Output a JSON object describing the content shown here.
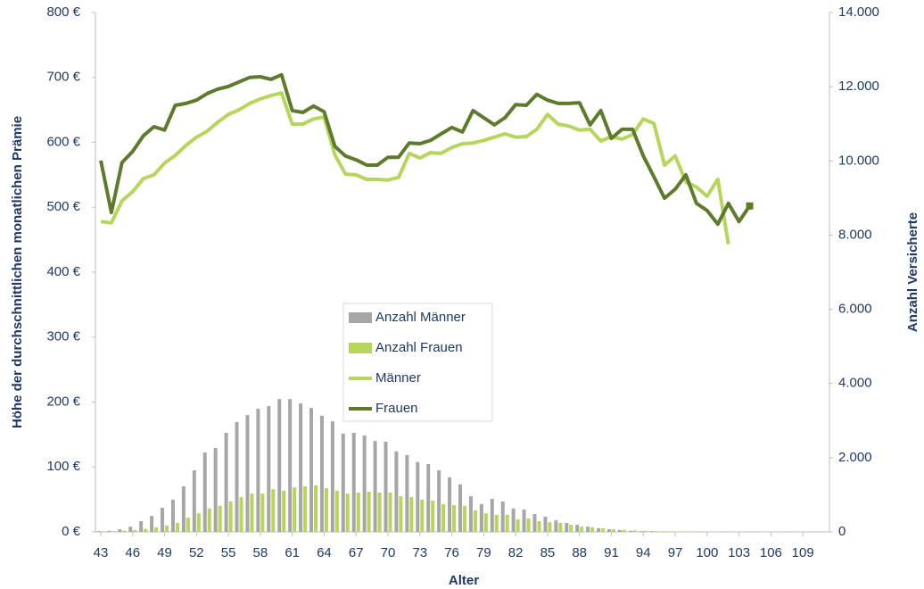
{
  "chart_data": {
    "type": "bar-line",
    "x_label": "Alter",
    "y_label": "Höhe der durchschnittlichen monatlichen Prämie",
    "y2_label": "Anzahl Versicherte",
    "x": [
      43,
      44,
      45,
      46,
      47,
      48,
      49,
      50,
      51,
      52,
      53,
      54,
      55,
      56,
      57,
      58,
      59,
      60,
      61,
      62,
      63,
      64,
      65,
      66,
      67,
      68,
      69,
      70,
      71,
      72,
      73,
      74,
      75,
      76,
      77,
      78,
      79,
      80,
      81,
      82,
      83,
      84,
      85,
      86,
      87,
      88,
      89,
      90,
      91,
      92,
      93,
      94,
      95,
      96,
      97,
      98,
      99,
      100,
      101,
      102,
      103,
      104,
      105,
      106,
      107,
      108,
      109,
      110,
      111
    ],
    "xlim": [
      42.5,
      111.5
    ],
    "xticks": [
      43,
      46,
      49,
      52,
      55,
      58,
      61,
      64,
      67,
      70,
      73,
      76,
      79,
      82,
      85,
      88,
      91,
      94,
      97,
      100,
      103,
      106,
      109
    ],
    "ylim": [
      0,
      800
    ],
    "yticks": [
      {
        "value": 0,
        "label": "0 €"
      },
      {
        "value": 100,
        "label": "100 €"
      },
      {
        "value": 200,
        "label": "200 €"
      },
      {
        "value": 300,
        "label": "300 €"
      },
      {
        "value": 400,
        "label": "400 €"
      },
      {
        "value": 500,
        "label": "500 €"
      },
      {
        "value": 600,
        "label": "600 €"
      },
      {
        "value": 700,
        "label": "700 €"
      },
      {
        "value": 800,
        "label": "800 €"
      }
    ],
    "y2lim": [
      0,
      14000
    ],
    "y2ticks": [
      0,
      {
        "value": 2000,
        "label": "2.000"
      },
      {
        "value": 4000,
        "label": "4.000"
      },
      {
        "value": 6000,
        "label": "6.000"
      },
      {
        "value": 8000,
        "label": "8.000"
      },
      {
        "value": 10000,
        "label": "10.000"
      },
      {
        "value": 12000,
        "label": "12.000"
      },
      {
        "value": 14000,
        "label": "14.000"
      }
    ],
    "legend": "center",
    "series": [
      {
        "name": "Anzahl Männer",
        "type": "bar",
        "axis": "y2",
        "color": "#a6a6a6",
        "values": [
          20,
          30,
          70,
          140,
          290,
          430,
          650,
          870,
          1230,
          1660,
          2140,
          2260,
          2670,
          2960,
          3150,
          3320,
          3390,
          3580,
          3580,
          3460,
          3340,
          3130,
          2980,
          2650,
          2670,
          2600,
          2450,
          2430,
          2170,
          2070,
          1880,
          1830,
          1660,
          1470,
          1280,
          960,
          750,
          890,
          820,
          630,
          600,
          480,
          410,
          310,
          240,
          190,
          140,
          100,
          70,
          50,
          30,
          20,
          20,
          10,
          10,
          0,
          0,
          0,
          0,
          0,
          0,
          0,
          0,
          0,
          0,
          0,
          0,
          0,
          0
        ]
      },
      {
        "name": "Anzahl Frauen",
        "type": "bar",
        "axis": "y2",
        "color": "#b5d55b",
        "values": [
          20,
          20,
          30,
          50,
          80,
          120,
          170,
          240,
          380,
          500,
          630,
          700,
          820,
          940,
          1030,
          1030,
          1150,
          1110,
          1200,
          1230,
          1250,
          1180,
          1110,
          1030,
          1060,
          1080,
          1060,
          1060,
          960,
          940,
          870,
          840,
          750,
          720,
          700,
          580,
          500,
          460,
          460,
          340,
          360,
          290,
          260,
          240,
          190,
          140,
          120,
          100,
          70,
          50,
          40,
          30,
          20,
          20,
          10,
          10,
          0,
          0,
          0,
          0,
          0,
          0,
          0,
          0,
          0,
          0,
          0,
          0,
          0
        ]
      },
      {
        "name": "Männer",
        "type": "line",
        "color": "#b5d55b",
        "values": [
          478,
          476,
          510,
          524,
          544,
          550,
          568,
          580,
          595,
          608,
          617,
          631,
          643,
          650,
          660,
          667,
          672,
          676,
          628,
          628,
          636,
          639,
          581,
          551,
          550,
          543,
          543,
          542,
          546,
          583,
          576,
          584,
          583,
          592,
          598,
          599,
          603,
          608,
          613,
          608,
          609,
          620,
          643,
          628,
          625,
          619,
          620,
          602,
          609,
          605,
          612,
          636,
          629,
          565,
          579,
          539,
          531,
          517,
          543,
          443,
          null,
          null,
          null,
          null,
          null,
          null,
          null,
          null,
          null
        ]
      },
      {
        "name": "Frauen",
        "type": "line",
        "color": "#5e7b2c",
        "values": [
          572,
          492,
          569,
          586,
          610,
          624,
          619,
          657,
          660,
          665,
          675,
          682,
          686,
          693,
          700,
          701,
          697,
          704,
          649,
          646,
          656,
          647,
          594,
          579,
          573,
          565,
          565,
          577,
          577,
          599,
          598,
          603,
          613,
          623,
          616,
          649,
          638,
          627,
          638,
          658,
          657,
          674,
          665,
          660,
          660,
          661,
          627,
          649,
          606,
          620,
          620,
          579,
          547,
          514,
          528,
          550,
          506,
          495,
          474,
          506,
          478,
          502,
          null,
          null,
          null,
          null,
          null,
          null,
          null
        ]
      }
    ]
  }
}
